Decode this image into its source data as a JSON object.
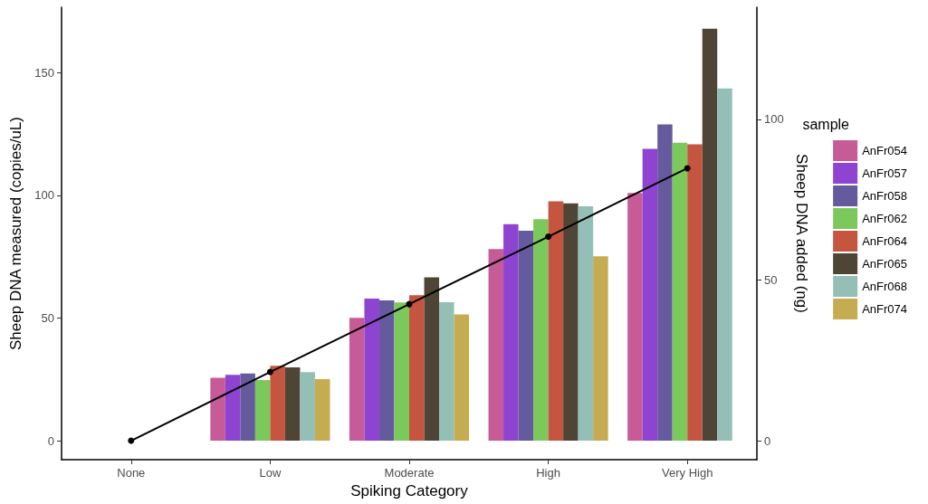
{
  "chart_data": {
    "type": "bar",
    "xlabel": "Spiking Category",
    "ylabel": "Sheep DNA measured (copies/uL)",
    "y2label": "Sheep DNA added (ng)",
    "legend_title": "sample",
    "categories": [
      "None",
      "Low",
      "Moderate",
      "High",
      "Very High"
    ],
    "series": [
      {
        "name": "AnFr054",
        "color": "#c75b97",
        "values": [
          null,
          25.7,
          50.1,
          78.1,
          100.9
        ]
      },
      {
        "name": "AnFr057",
        "color": "#8e44d0",
        "values": [
          null,
          26.9,
          57.9,
          88.2,
          118.9
        ]
      },
      {
        "name": "AnFr058",
        "color": "#655a9e",
        "values": [
          null,
          27.4,
          57.2,
          85.6,
          128.9
        ]
      },
      {
        "name": "AnFr062",
        "color": "#7bc95b",
        "values": [
          null,
          24.7,
          56.3,
          90.3,
          121.4
        ]
      },
      {
        "name": "AnFr064",
        "color": "#c6553f",
        "values": [
          null,
          30.5,
          59.3,
          97.5,
          120.8
        ]
      },
      {
        "name": "AnFr065",
        "color": "#4f4536",
        "values": [
          null,
          29.9,
          66.6,
          96.7,
          167.8
        ]
      },
      {
        "name": "AnFr068",
        "color": "#94bfb7",
        "values": [
          null,
          28.0,
          56.4,
          95.5,
          143.5
        ]
      },
      {
        "name": "AnFr074",
        "color": "#c6ac50",
        "values": [
          null,
          25.1,
          51.5,
          75.1,
          null
        ]
      },
      {
        "type": "line",
        "axis": "y2",
        "color": "#000000",
        "marker": "circle",
        "values": [
          0,
          21.4,
          42.5,
          63.5,
          84.8
        ]
      }
    ],
    "ylim": [
      -7.7,
      176.6
    ],
    "yticks": [
      0,
      50,
      100,
      150
    ],
    "y2lim": [
      -5.9,
      134.9
    ],
    "y2ticks": [
      0,
      50,
      100
    ],
    "grid": false,
    "legend": "right"
  }
}
